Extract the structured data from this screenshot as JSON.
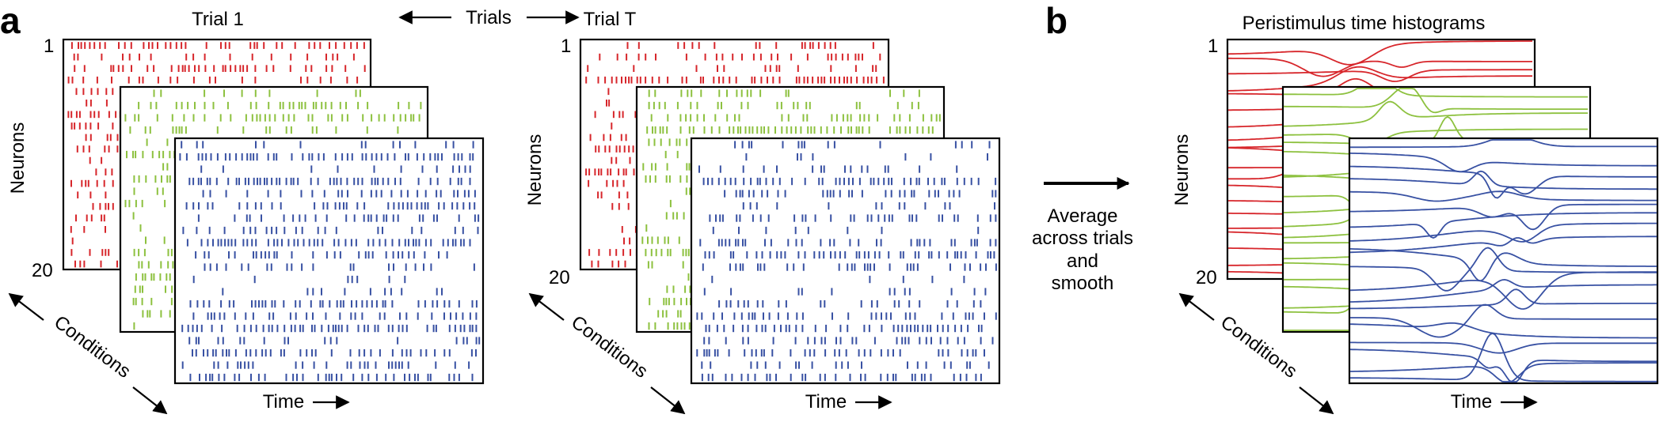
{
  "panel_a": {
    "label": "a",
    "trial_first_title": "Trial 1",
    "trial_last_title": "Trial T",
    "trials_label": "Trials",
    "neurons_label": "Neurons",
    "neuron_first": "1",
    "neuron_last": "20",
    "conditions_label": "Conditions",
    "time_label": "Time"
  },
  "middle": {
    "line1": "Average",
    "line2": "across trials",
    "line3": "and",
    "line4": "smooth"
  },
  "panel_b": {
    "label": "b",
    "title": "Peristimulus time histograms",
    "neurons_label": "Neurons",
    "neuron_first": "1",
    "neuron_last": "20",
    "conditions_label": "Conditions",
    "time_label": "Time"
  },
  "colors": {
    "condition_1": "#d7262b",
    "condition_2": "#8dc13f",
    "condition_3": "#3851a3"
  },
  "neuron_count": 20,
  "condition_count": 3
}
